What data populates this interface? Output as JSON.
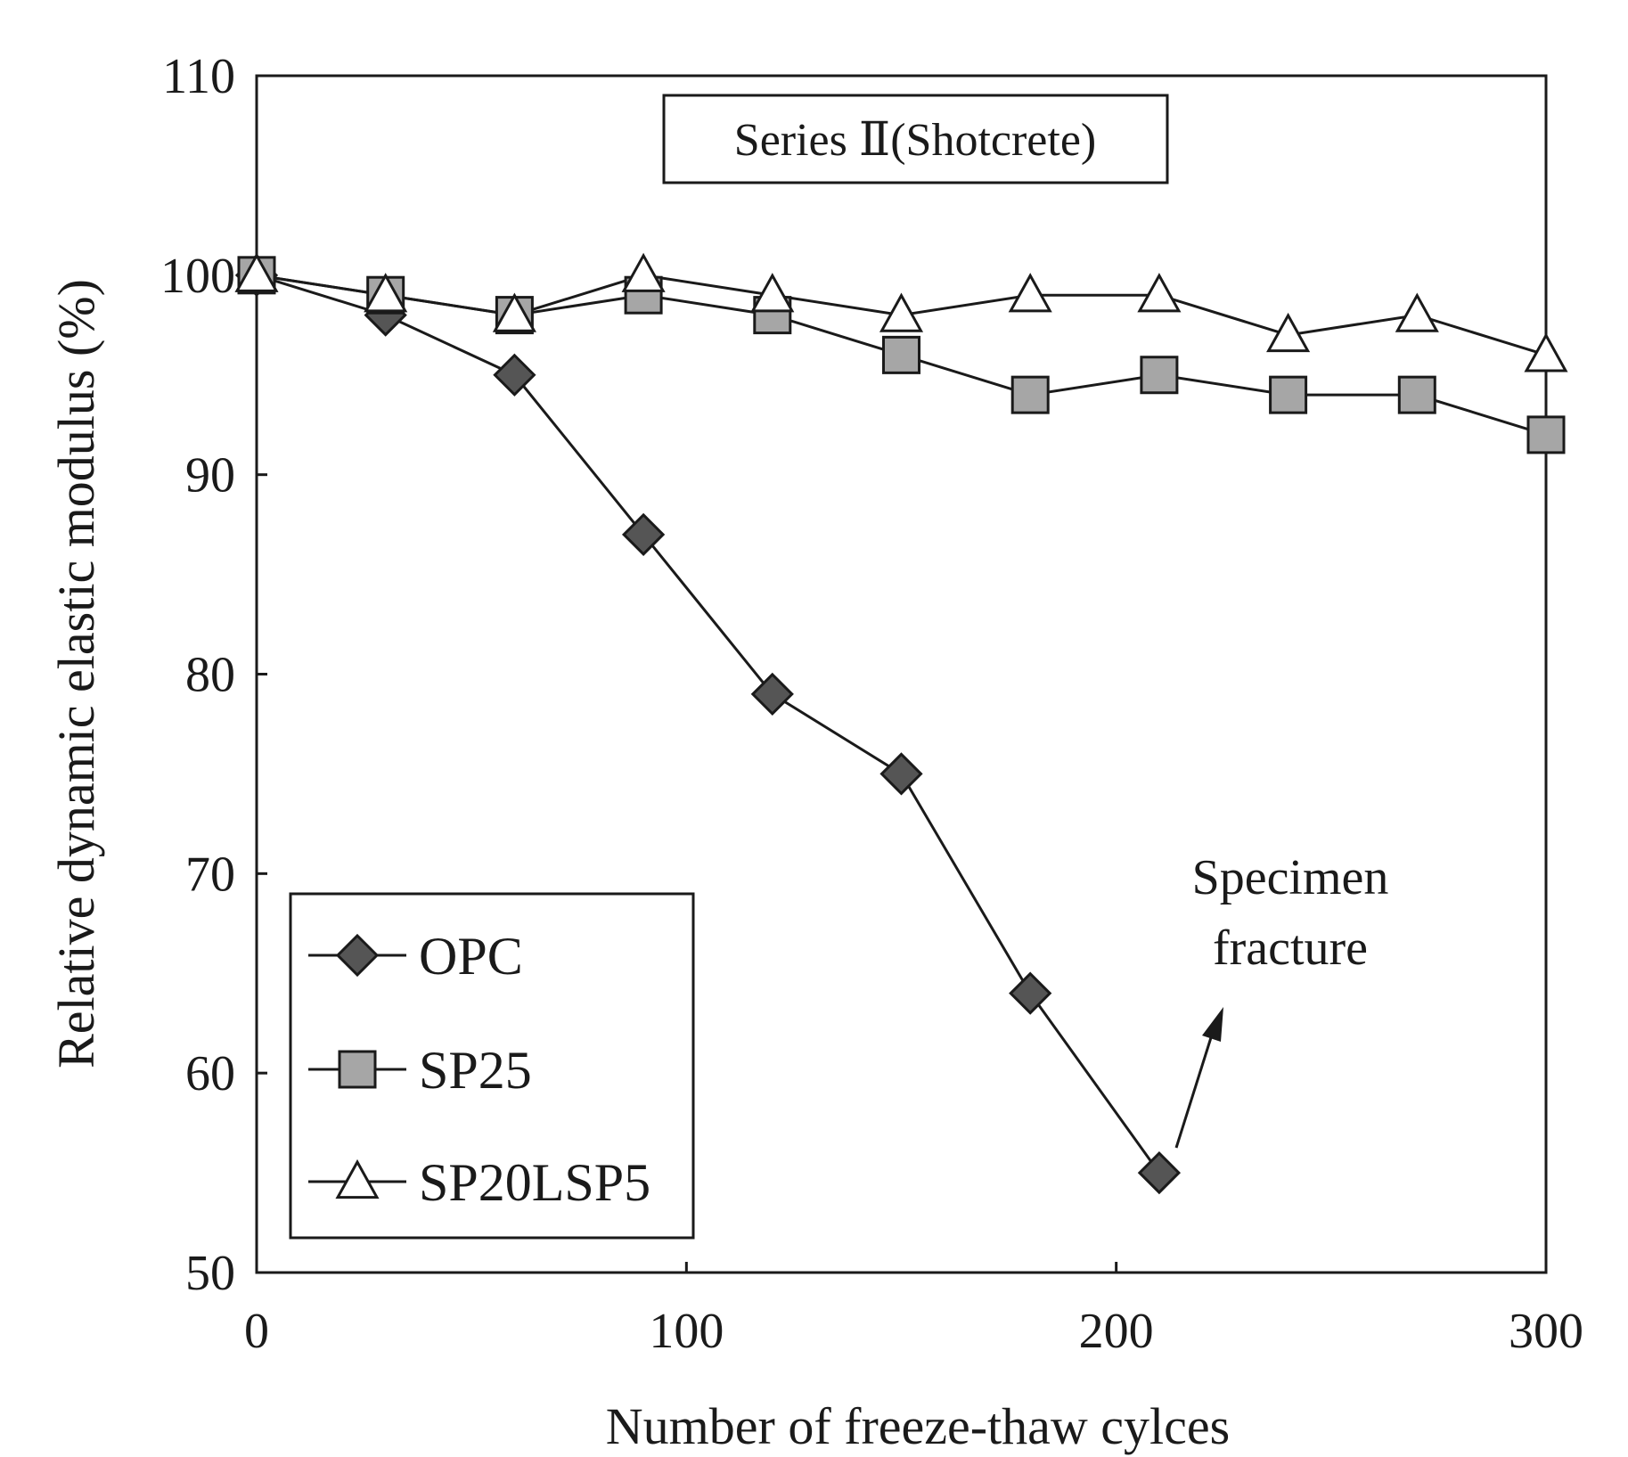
{
  "chart_data": {
    "type": "line",
    "title": "Series Ⅱ(Shotcrete)",
    "xlabel": "Number of freeze-thaw cylces",
    "ylabel": "Relative dynamic elastic modulus (%)",
    "xlim": [
      0,
      300
    ],
    "ylim": [
      50,
      110
    ],
    "xticks": [
      0,
      100,
      200,
      300
    ],
    "yticks": [
      50,
      60,
      70,
      80,
      90,
      100,
      110
    ],
    "x": [
      0,
      30,
      60,
      90,
      120,
      150,
      180,
      210,
      240,
      270,
      300
    ],
    "series": [
      {
        "name": "OPC",
        "marker": "diamond",
        "color": "#555555",
        "values": [
          100,
          98,
          95,
          87,
          79,
          75,
          64,
          55,
          null,
          null,
          null
        ]
      },
      {
        "name": "SP25",
        "marker": "square",
        "color": "#a6a6a6",
        "values": [
          100,
          99,
          98,
          99,
          98,
          96,
          94,
          95,
          94,
          94,
          92
        ]
      },
      {
        "name": "SP20LSP5",
        "marker": "triangle",
        "color": "#ffffff",
        "values": [
          100,
          99,
          98,
          100,
          99,
          98,
          99,
          99,
          97,
          98,
          96
        ]
      }
    ],
    "legend_position": "bottom-left",
    "annotation": {
      "lines": [
        "Specimen",
        "fracture"
      ],
      "points_to": {
        "x": 210,
        "y": 55
      }
    }
  }
}
